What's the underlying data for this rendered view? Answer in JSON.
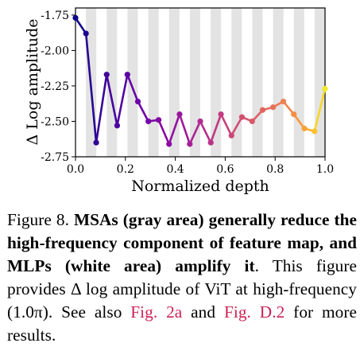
{
  "chart_data": {
    "type": "line",
    "xlabel": "Normalized depth",
    "ylabel": "Δ Log amplitude",
    "xlim": [
      0.0,
      1.0
    ],
    "ylim": [
      -2.75,
      -1.7
    ],
    "x_ticks": [
      "0.0",
      "0.2",
      "0.4",
      "0.6",
      "0.8",
      "1.0"
    ],
    "y_ticks": [
      "-1.75",
      "-2.00",
      "-2.25",
      "-2.50",
      "-2.75"
    ],
    "x_tick_values": [
      0.0,
      0.2,
      0.4,
      0.6,
      0.8,
      1.0
    ],
    "y_tick_values": [
      -1.75,
      -2.0,
      -2.25,
      -2.5,
      -2.75
    ],
    "shaded_regions": "gray bands = MSA blocks, white bands = MLP blocks",
    "grid": false,
    "colormap": "plasma",
    "series": [
      {
        "x": [
          0.0,
          0.042,
          0.083,
          0.125,
          0.167,
          0.208,
          0.25,
          0.292,
          0.333,
          0.375,
          0.417,
          0.458,
          0.5,
          0.542,
          0.583,
          0.625,
          0.667,
          0.708,
          0.75,
          0.792,
          0.833,
          0.875,
          0.917,
          0.958,
          1.0
        ],
        "y": [
          -1.77,
          -1.88,
          -2.65,
          -2.17,
          -2.53,
          -2.17,
          -2.36,
          -2.5,
          -2.49,
          -2.66,
          -2.45,
          -2.66,
          -2.5,
          -2.65,
          -2.45,
          -2.6,
          -2.47,
          -2.5,
          -2.42,
          -2.4,
          -2.36,
          -2.45,
          -2.55,
          -2.57,
          -2.27
        ]
      }
    ]
  },
  "caption": {
    "prefix": "Figure 8. ",
    "bold": "MSAs (gray area) generally reduce the high-frequency component of feature map, and MLPs (white area) amplify it",
    "middle": ". This figure provides Δ log amplitude of ViT at high-frequency (1.0π). See also ",
    "link1": "Fig. 2a",
    "and": " and ",
    "link2": "Fig. D.2",
    "suffix": " for more results.",
    "link_color": "#cc2255"
  }
}
